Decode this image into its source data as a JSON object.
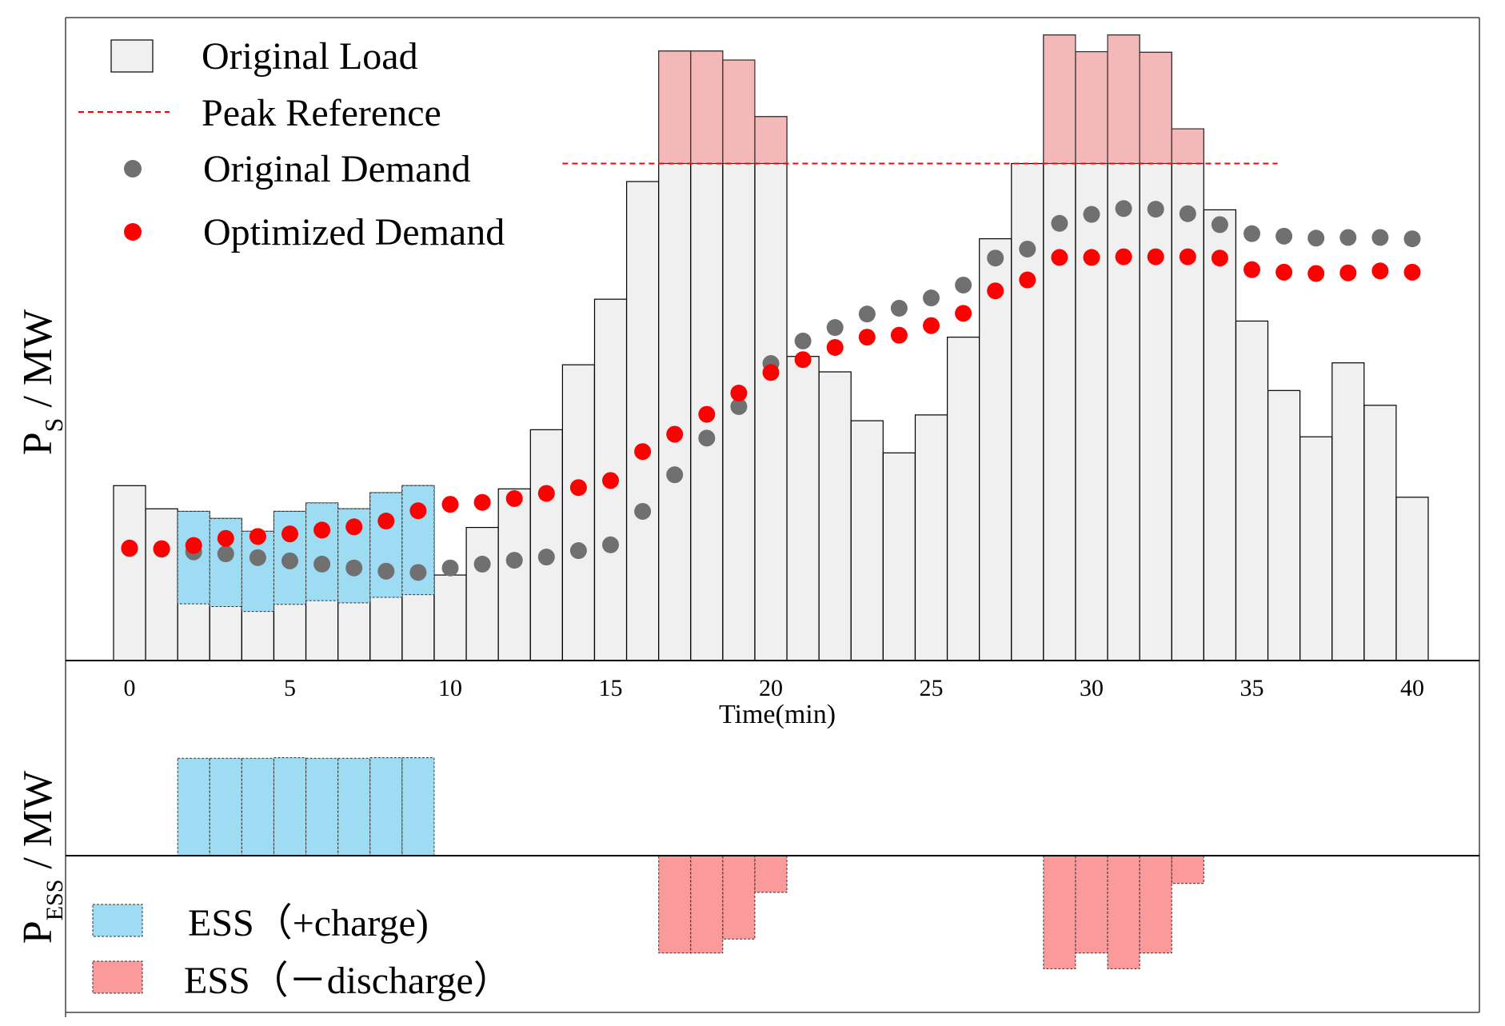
{
  "colors": {
    "load_fill": "#f0f0f0",
    "peak_reference": "#ff0000",
    "original_demand": "#707070",
    "optimized_demand": "#ff0000",
    "ess_charge": "#9ddcf3",
    "ess_discharge": "#fb9a9a",
    "peak_excess": "#f4b8b8"
  },
  "chart_data": [
    {
      "type": "bar",
      "xlabel": "Time(min)",
      "ylabel_main": "P",
      "ylabel_sub": "S",
      "ylabel_unit": " / MW",
      "x_ticks": [
        "0",
        "5",
        "10",
        "15",
        "20",
        "25",
        "30",
        "35",
        "40"
      ],
      "x_tick_values": [
        0,
        5,
        10,
        15,
        20,
        25,
        30,
        35,
        40
      ],
      "xlim": [
        -0.5,
        41.5
      ],
      "ylim": [
        0,
        100
      ],
      "x": [
        0,
        1,
        2,
        3,
        4,
        5,
        6,
        7,
        8,
        9,
        10,
        11,
        12,
        13,
        14,
        15,
        16,
        17,
        18,
        19,
        20,
        21,
        22,
        23,
        24,
        25,
        26,
        27,
        28,
        29,
        30,
        31,
        32,
        33,
        34,
        35,
        36,
        37,
        38,
        39,
        40
      ],
      "legend_position": "top-left",
      "series": [
        {
          "name": "Original Load",
          "style": "bar",
          "values": [
            27.2,
            23.6,
            23.2,
            22.1,
            20.1,
            23.2,
            24.5,
            23.6,
            26.1,
            27.2,
            13.3,
            20.7,
            26.7,
            35.9,
            46.0,
            56.2,
            74.5,
            94.8,
            94.8,
            93.4,
            84.6,
            47.3,
            44.9,
            37.3,
            32.3,
            38.2,
            50.3,
            65.6,
            77.3,
            97.3,
            94.7,
            97.3,
            94.6,
            82.7,
            70.1,
            52.8,
            42.0,
            34.8,
            46.3,
            39.7,
            25.4
          ]
        },
        {
          "name": "Peak Reference",
          "style": "dashed-line",
          "x_range": [
            13.5,
            35.8
          ],
          "value": 77.3
        },
        {
          "name": "Original Demand",
          "style": "scatter",
          "values": [
            17.4,
            17.3,
            16.9,
            16.6,
            16.0,
            15.5,
            15.0,
            14.4,
            13.9,
            13.7,
            14.4,
            15.0,
            15.6,
            16.1,
            17.1,
            18.0,
            23.2,
            28.9,
            34.6,
            39.5,
            46.2,
            49.7,
            51.8,
            53.9,
            54.8,
            56.4,
            58.4,
            62.6,
            64.0,
            68.0,
            69.4,
            70.3,
            70.2,
            69.5,
            67.8,
            66.4,
            66.0,
            65.7,
            65.8,
            65.8,
            65.6
          ]
        },
        {
          "name": "Optimized Demand",
          "style": "scatter",
          "values": [
            17.5,
            17.4,
            17.9,
            19.0,
            19.3,
            19.7,
            20.3,
            20.8,
            21.7,
            23.3,
            24.3,
            24.6,
            25.2,
            26.0,
            26.9,
            28.0,
            32.5,
            35.2,
            38.3,
            41.6,
            44.8,
            46.8,
            48.7,
            50.3,
            50.6,
            52.1,
            54.0,
            57.5,
            59.2,
            62.7,
            62.7,
            62.8,
            62.8,
            62.8,
            62.6,
            60.8,
            60.4,
            60.2,
            60.3,
            60.6,
            60.4
          ]
        }
      ]
    },
    {
      "type": "bar",
      "ylabel_main": "P",
      "ylabel_sub": "ESS",
      "ylabel_unit": " / MW",
      "xlim": [
        -0.5,
        41.5
      ],
      "ylim": [
        -100,
        100
      ],
      "x": [
        0,
        1,
        2,
        3,
        4,
        5,
        6,
        7,
        8,
        9,
        10,
        11,
        12,
        13,
        14,
        15,
        16,
        17,
        18,
        19,
        20,
        21,
        22,
        23,
        24,
        25,
        26,
        27,
        28,
        29,
        30,
        31,
        32,
        33,
        34,
        35,
        36,
        37,
        38,
        39,
        40
      ],
      "legend_position": "bottom-left",
      "series": [
        {
          "name": "ESS（+charge)",
          "style": "bar",
          "values": [
            0,
            0,
            87,
            87,
            87,
            87.5,
            87,
            87,
            87.5,
            87.5,
            0,
            0,
            0,
            0,
            0,
            0,
            0,
            0,
            0,
            0,
            0,
            0,
            0,
            0,
            0,
            0,
            0,
            0,
            0,
            0,
            0,
            0,
            0,
            0,
            0,
            0,
            0,
            0,
            0,
            0,
            0
          ]
        },
        {
          "name": "ESS（－discharge）",
          "style": "bar",
          "values": [
            0,
            0,
            0,
            0,
            0,
            0,
            0,
            0,
            0,
            0,
            0,
            0,
            0,
            0,
            0,
            0,
            0,
            -87,
            -87,
            -74.5,
            -32.8,
            0,
            0,
            0,
            0,
            0,
            0,
            0,
            0,
            -101,
            -87,
            -101,
            -87,
            -24.8,
            0,
            0,
            0,
            0,
            0,
            0,
            0
          ]
        }
      ]
    }
  ]
}
